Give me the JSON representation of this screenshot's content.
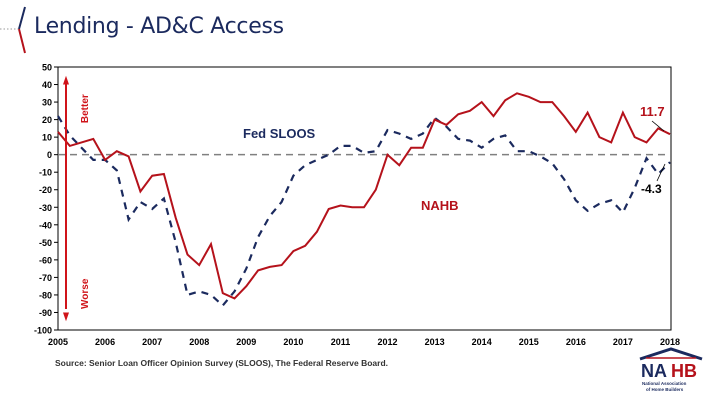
{
  "page": {
    "title": "Lending - AD&C Access",
    "source": "Source: Senior Loan Officer Opinion Survey (SLOOS), The Federal Reserve Board.",
    "logo": {
      "text": "NAHB",
      "subtitle_line1": "National Association",
      "subtitle_line2": "of Home Builders"
    }
  },
  "chart_data": {
    "type": "line",
    "title": "Lending - AD&C Access",
    "xlabel": "",
    "ylabel": "",
    "ylim": [
      -100,
      50
    ],
    "yticks": [
      50,
      40,
      30,
      20,
      10,
      0,
      -10,
      -20,
      -30,
      -40,
      -50,
      -60,
      -70,
      -80,
      -90,
      -100
    ],
    "xlim": [
      2005,
      2018
    ],
    "xticks": [
      "2005",
      "2006",
      "2007",
      "2008",
      "2009",
      "2010",
      "2011",
      "2012",
      "2013",
      "2014",
      "2015",
      "2016",
      "2017",
      "2018"
    ],
    "grid": false,
    "reference_line": 0,
    "annotations": {
      "better": "Better",
      "worse": "Worse",
      "nahb_last": "11.7",
      "sloos_last": "-4.3"
    },
    "colors": {
      "nahb": "#b5121b",
      "sloos": "#1b2a5e",
      "zero": "#808080"
    },
    "x_start": 2005,
    "x_step": 0.25,
    "series": [
      {
        "name": "NAHB",
        "label": "NAHB",
        "style": "solid",
        "values": [
          13,
          5,
          7,
          9,
          -3,
          2,
          -1,
          -21,
          -12,
          -11,
          -36,
          -57,
          -63,
          -51,
          -79,
          -82,
          -75,
          -66,
          -64,
          -63,
          -55,
          -52,
          -44,
          -31,
          -29,
          -30,
          -30,
          -20,
          0,
          -6,
          4,
          4,
          20,
          17,
          23,
          25,
          30,
          22,
          31,
          35,
          33,
          30,
          30,
          22,
          13,
          24,
          10,
          7,
          24,
          10,
          7,
          15,
          11.7
        ]
      },
      {
        "name": "Fed SLOOS",
        "label": "Fed SLOOS",
        "style": "dashed",
        "values": [
          22,
          11,
          4,
          -3,
          -3,
          -9,
          -37,
          -27,
          -31,
          -25,
          -50,
          -80,
          -78,
          -80,
          -86,
          -78,
          -65,
          -47,
          -35,
          -27,
          -12,
          -6,
          -3,
          0,
          5,
          5,
          1,
          2,
          14,
          12,
          9,
          12,
          21,
          16,
          9,
          8,
          4,
          9,
          11,
          2,
          2,
          -1,
          -5,
          -14,
          -26,
          -32,
          -28,
          -26,
          -33,
          -19,
          -2,
          -11,
          -4.3
        ]
      }
    ]
  }
}
